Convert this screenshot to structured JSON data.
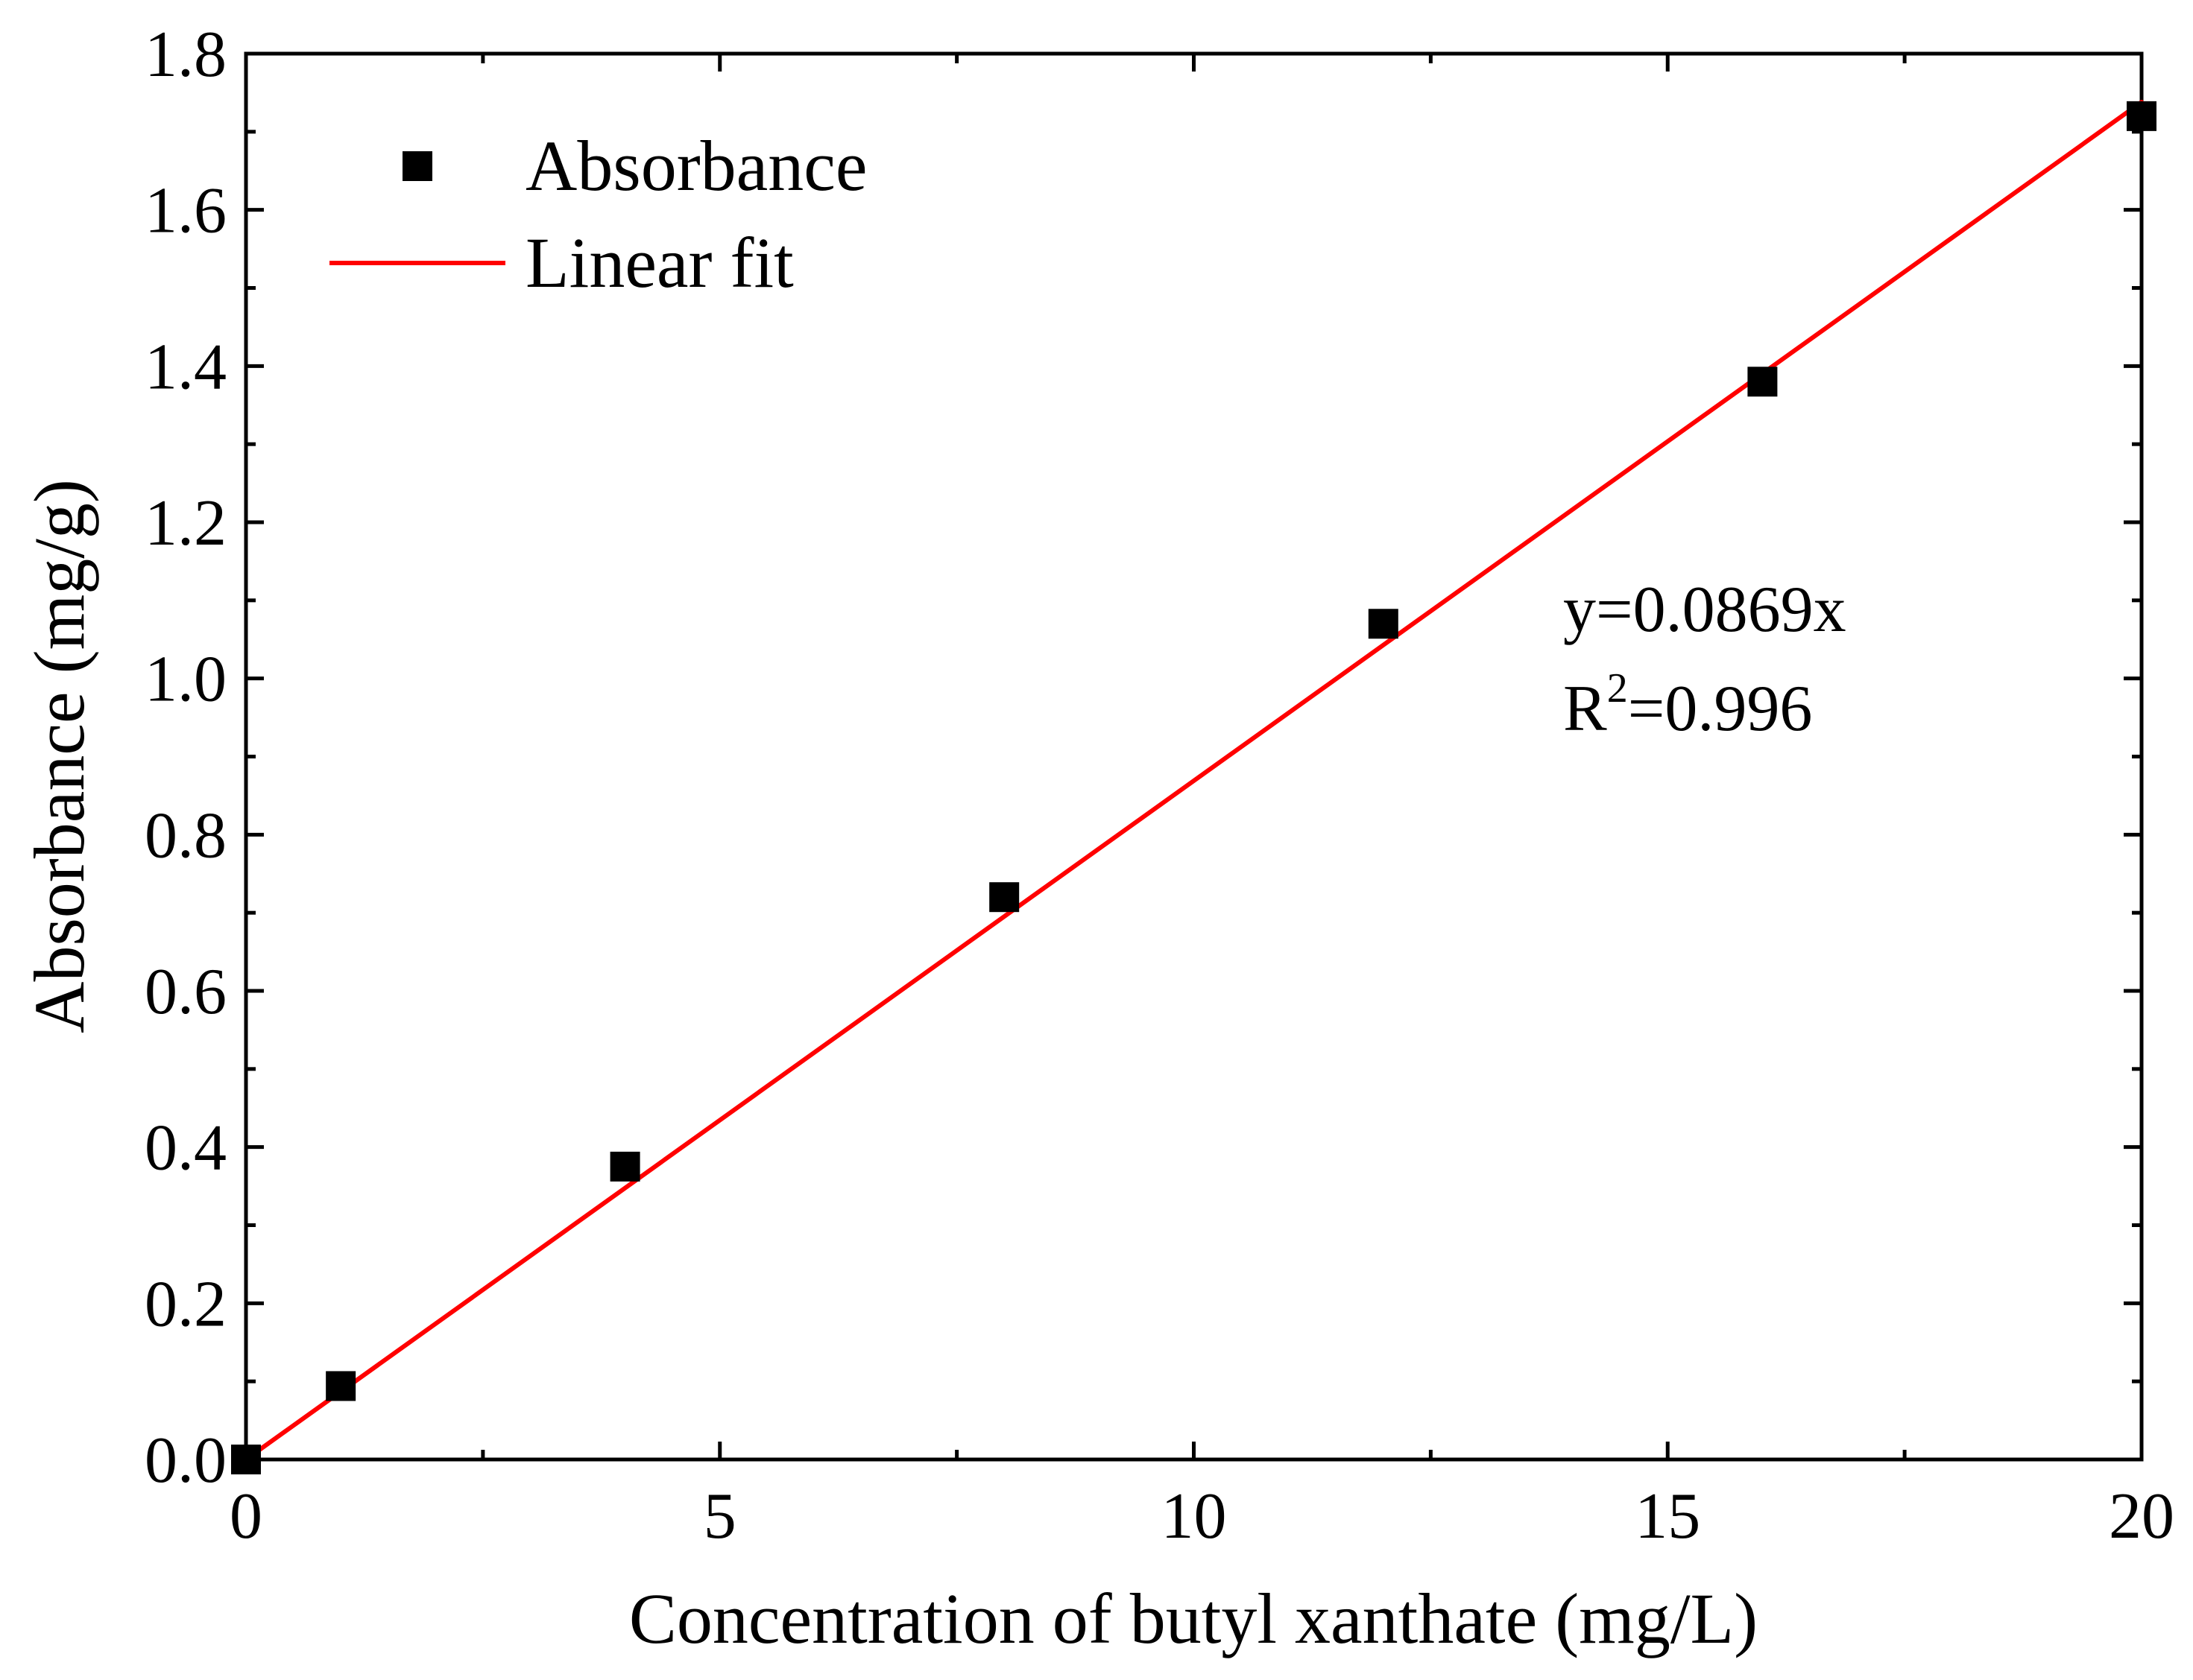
{
  "chart_data": {
    "type": "scatter",
    "title": "",
    "xlabel": "Concentration of butyl xanthate (mg/L)",
    "ylabel": "Absorbance (mg/g)",
    "xlim": [
      0,
      20
    ],
    "ylim": [
      0,
      1.8
    ],
    "x_ticks": [
      "0",
      "5",
      "10",
      "15",
      "20"
    ],
    "y_ticks": [
      "0.0",
      "0.2",
      "0.4",
      "0.6",
      "0.8",
      "1.0",
      "1.2",
      "1.4",
      "1.6",
      "1.8"
    ],
    "grid": false,
    "legend_position": "top-left",
    "series": [
      {
        "name": "Absorbance",
        "type": "scatter",
        "marker": "square",
        "color": "#000000",
        "x": [
          0,
          1,
          4,
          8,
          12,
          16,
          20
        ],
        "y": [
          0.0,
          0.094,
          0.375,
          0.72,
          1.07,
          1.38,
          1.72
        ]
      },
      {
        "name": "Linear fit",
        "type": "line",
        "color": "#ff0000",
        "slope": 0.0869,
        "intercept": 0,
        "x_range": [
          0,
          20
        ]
      }
    ],
    "annotations": {
      "equation": "y=0.0869x",
      "r2_prefix": "R",
      "r2_sup": "2",
      "r2_value": "=0.996"
    }
  }
}
